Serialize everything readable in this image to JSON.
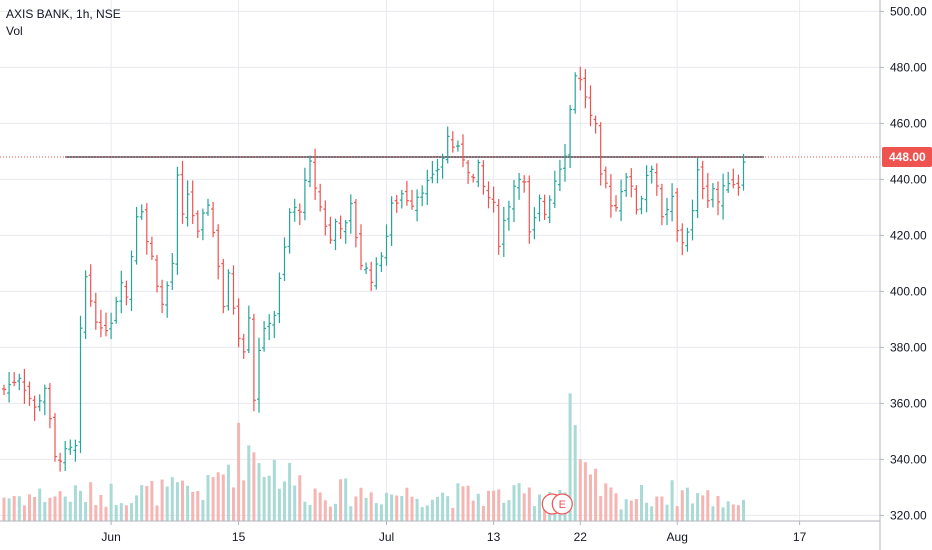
{
  "legend": {
    "symbol_line": "AXIS BANK, 1h, NSE",
    "volume_label": "Vol"
  },
  "colors": {
    "up": "#26a69a",
    "down": "#ef5350",
    "vol_up": "#a9dad6",
    "vol_down": "#f5b5b3",
    "grid": "#e8eaf0",
    "level_line": "#434651",
    "last_price_line": "#ef5350",
    "price_badge": "#ef5350",
    "axis_text": "#131722"
  },
  "chart_data": {
    "type": "ohlc",
    "title": "AXIS BANK, 1h, NSE",
    "y_axis": {
      "position": "right",
      "range": [
        318,
        503
      ],
      "ticks": [
        320,
        340,
        360,
        380,
        400,
        420,
        440,
        460,
        480,
        500
      ],
      "tick_labels": [
        "320.00",
        "340.00",
        "360.00",
        "380.00",
        "400.00",
        "420.00",
        "440.00",
        "460.00",
        "480.00",
        "500.00"
      ]
    },
    "x_axis": {
      "labels": [
        {
          "label": "Jun",
          "bar": 21
        },
        {
          "label": "15",
          "bar": 46
        },
        {
          "label": "Jul",
          "bar": 75
        },
        {
          "label": "13",
          "bar": 96
        },
        {
          "label": "22",
          "bar": 113
        },
        {
          "label": "Aug",
          "bar": 132
        },
        {
          "label": "17",
          "bar": 156
        }
      ]
    },
    "grid": true,
    "horizontal_level": 448,
    "last_price": 448,
    "last_price_label": "448.00",
    "earnings_marker": "E",
    "close_path": [
      [
        0,
        365
      ],
      [
        3,
        370
      ],
      [
        6,
        358
      ],
      [
        8,
        366
      ],
      [
        9,
        353
      ],
      [
        10,
        340
      ],
      [
        12,
        342
      ],
      [
        14,
        344
      ],
      [
        15,
        385
      ],
      [
        16,
        405
      ],
      [
        17,
        397
      ],
      [
        19,
        385
      ],
      [
        21,
        390
      ],
      [
        23,
        405
      ],
      [
        24,
        398
      ],
      [
        26,
        428
      ],
      [
        27,
        430
      ],
      [
        28,
        418
      ],
      [
        29,
        412
      ],
      [
        31,
        395
      ],
      [
        32,
        402
      ],
      [
        33,
        410
      ],
      [
        34,
        440
      ],
      [
        35,
        426
      ],
      [
        36,
        435
      ],
      [
        38,
        420
      ],
      [
        40,
        432
      ],
      [
        42,
        410
      ],
      [
        43,
        395
      ],
      [
        44,
        405
      ],
      [
        46,
        385
      ],
      [
        47,
        380
      ],
      [
        48,
        392
      ],
      [
        49,
        362
      ],
      [
        50,
        380
      ],
      [
        52,
        390
      ],
      [
        53,
        392
      ],
      [
        55,
        415
      ],
      [
        56,
        428
      ],
      [
        58,
        430
      ],
      [
        59,
        438
      ],
      [
        60,
        445
      ],
      [
        62,
        430
      ],
      [
        64,
        418
      ],
      [
        65,
        425
      ],
      [
        67,
        423
      ],
      [
        68,
        430
      ],
      [
        70,
        410
      ],
      [
        72,
        405
      ],
      [
        73,
        408
      ],
      [
        75,
        420
      ],
      [
        76,
        430
      ],
      [
        78,
        435
      ],
      [
        80,
        432
      ],
      [
        82,
        437
      ],
      [
        84,
        440
      ],
      [
        86,
        448
      ],
      [
        87,
        455
      ],
      [
        88,
        452
      ],
      [
        90,
        448
      ],
      [
        92,
        440
      ],
      [
        93,
        444
      ],
      [
        94,
        437
      ],
      [
        96,
        430
      ],
      [
        97,
        418
      ],
      [
        98,
        425
      ],
      [
        100,
        438
      ],
      [
        101,
        442
      ],
      [
        102,
        438
      ],
      [
        103,
        420
      ],
      [
        104,
        425
      ],
      [
        105,
        432
      ],
      [
        106,
        428
      ],
      [
        108,
        440
      ],
      [
        109,
        445
      ],
      [
        110,
        450
      ],
      [
        111,
        465
      ],
      [
        112,
        478
      ],
      [
        113,
        475
      ],
      [
        114,
        470
      ],
      [
        115,
        462
      ],
      [
        116,
        458
      ],
      [
        117,
        440
      ],
      [
        118,
        438
      ],
      [
        119,
        432
      ],
      [
        120,
        430
      ],
      [
        121,
        437
      ],
      [
        122,
        442
      ],
      [
        123,
        436
      ],
      [
        124,
        430
      ],
      [
        125,
        434
      ],
      [
        126,
        442
      ],
      [
        127,
        445
      ],
      [
        128,
        438
      ],
      [
        129,
        425
      ],
      [
        130,
        428
      ],
      [
        131,
        433
      ],
      [
        132,
        421
      ],
      [
        133,
        418
      ],
      [
        134,
        422
      ],
      [
        135,
        428
      ],
      [
        136,
        442
      ],
      [
        137,
        438
      ],
      [
        138,
        434
      ],
      [
        139,
        437
      ],
      [
        140,
        432
      ],
      [
        141,
        436
      ],
      [
        142,
        440
      ],
      [
        143,
        439
      ],
      [
        144,
        438
      ],
      [
        145,
        448
      ]
    ],
    "volume_path": [
      [
        0,
        0.11
      ],
      [
        20,
        0.12
      ],
      [
        40,
        0.14
      ],
      [
        47,
        0.34
      ],
      [
        60,
        0.13
      ],
      [
        80,
        0.12
      ],
      [
        100,
        0.11
      ],
      [
        110,
        0.14
      ],
      [
        111,
        0.55
      ],
      [
        113,
        0.2
      ],
      [
        120,
        0.1
      ],
      [
        134,
        0.13
      ],
      [
        140,
        0.09
      ],
      [
        145,
        0.09
      ]
    ]
  }
}
